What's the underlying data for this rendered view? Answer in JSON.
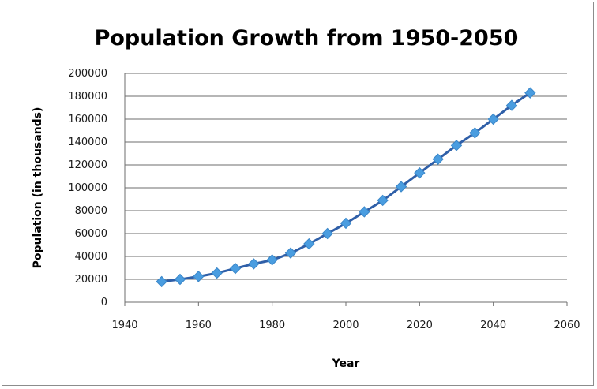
{
  "chart_data": {
    "type": "scatter",
    "title": "Population Growth from 1950-2050",
    "xlabel": "Year",
    "ylabel": "Population (in thousands)",
    "xlim": [
      1940,
      2060
    ],
    "ylim": [
      0,
      200000
    ],
    "x_ticks": [
      "1940",
      "1960",
      "1980",
      "2000",
      "2020",
      "2040",
      "2060"
    ],
    "y_ticks": [
      "0",
      "20000",
      "40000",
      "60000",
      "80000",
      "100000",
      "120000",
      "140000",
      "160000",
      "180000",
      "200000"
    ],
    "grid": "horizontal",
    "legend": "none",
    "line_color": "#2f5fa8",
    "marker_color": "#4a9de0",
    "marker": "diamond",
    "series": [
      {
        "x": [
          1950,
          1955,
          1960,
          1965,
          1970,
          1975,
          1980,
          1985,
          1990,
          1995,
          2000,
          2005,
          2010,
          2015,
          2020,
          2025,
          2030,
          2035,
          2040,
          2045,
          2050
        ],
        "y": [
          18000,
          20000,
          22500,
          25500,
          29500,
          33500,
          37000,
          43000,
          51000,
          60000,
          69000,
          79000,
          89000,
          101000,
          113000,
          125000,
          137000,
          148000,
          160000,
          172000,
          183000
        ]
      }
    ]
  }
}
